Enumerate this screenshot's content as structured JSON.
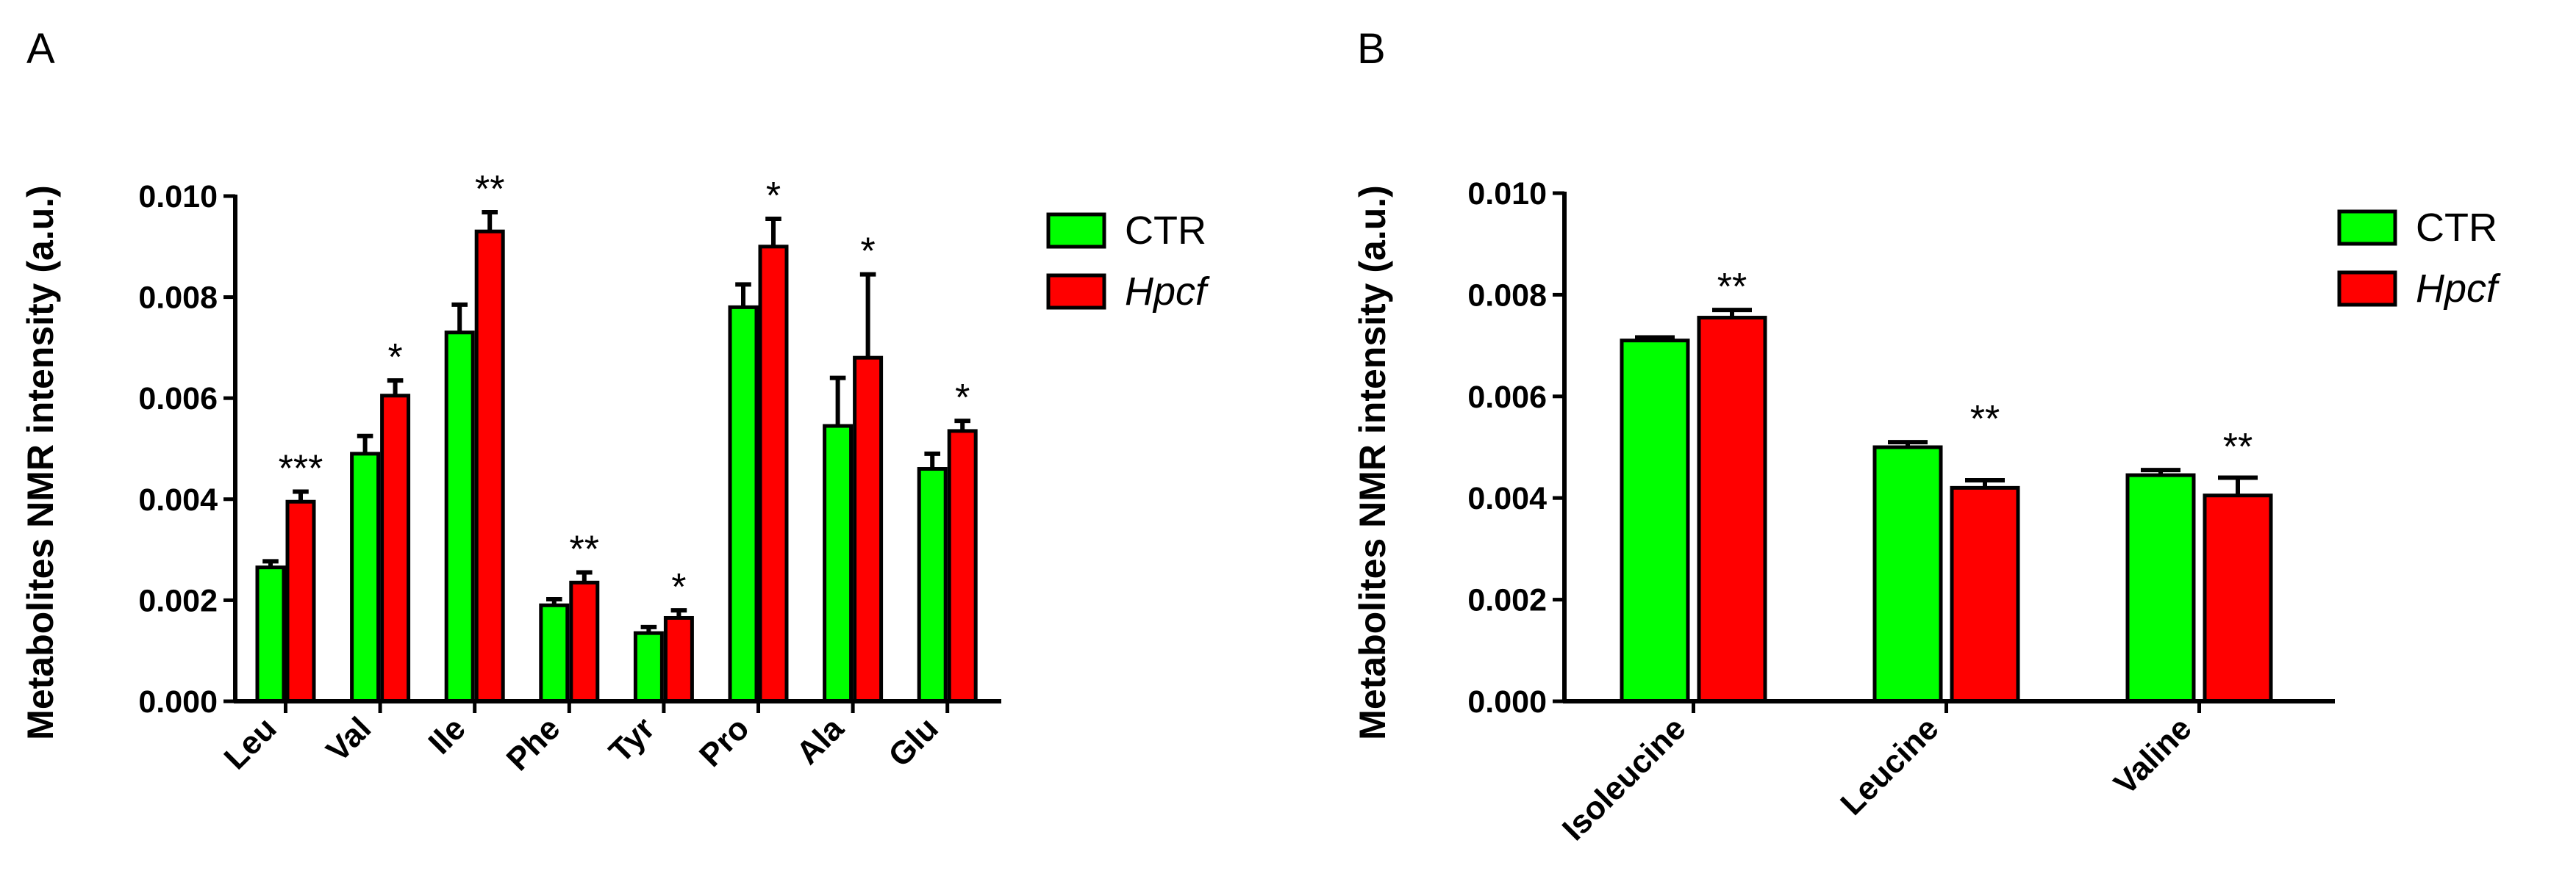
{
  "colors": {
    "ctr": "#00ff00",
    "hpcf": "#ff0000",
    "axis": "#000000"
  },
  "legend": [
    {
      "key": "ctr",
      "label": "CTR",
      "italic": false
    },
    {
      "key": "hpcf",
      "label": "Hpcf",
      "italic": true
    }
  ],
  "chart_data": [
    {
      "panel": "A",
      "type": "bar",
      "title": "",
      "xlabel": "",
      "ylabel": "Metabolites NMR intensity (a.u.)",
      "ylim": [
        0,
        0.01
      ],
      "yticks": [
        "0.000",
        "0.002",
        "0.004",
        "0.006",
        "0.008",
        "0.010"
      ],
      "categories": [
        "Leu",
        "Val",
        "Ile",
        "Phe",
        "Tyr",
        "Pro",
        "Ala",
        "Glu"
      ],
      "series": [
        {
          "name": "CTR",
          "values": [
            0.00265,
            0.0049,
            0.0073,
            0.0019,
            0.00135,
            0.0078,
            0.00545,
            0.0046
          ],
          "errors": [
            0.00012,
            0.00035,
            0.00055,
            0.00012,
            0.00012,
            0.00045,
            0.00095,
            0.0003
          ]
        },
        {
          "name": "Hpcf",
          "values": [
            0.00395,
            0.00605,
            0.0093,
            0.00235,
            0.00165,
            0.009,
            0.0068,
            0.00535
          ],
          "errors": [
            0.0002,
            0.0003,
            0.00038,
            0.0002,
            0.00015,
            0.00055,
            0.00165,
            0.0002
          ]
        }
      ],
      "significance": [
        "***",
        "*",
        "**",
        "**",
        "*",
        "*",
        "*",
        "*"
      ]
    },
    {
      "panel": "B",
      "type": "bar",
      "title": "",
      "xlabel": "",
      "ylabel": "Metabolites NMR intensity (a.u.)",
      "ylim": [
        0,
        0.01
      ],
      "yticks": [
        "0.000",
        "0.002",
        "0.004",
        "0.006",
        "0.008",
        "0.010"
      ],
      "categories": [
        "Isoleucine",
        "Leucine",
        "Valine"
      ],
      "series": [
        {
          "name": "CTR",
          "values": [
            0.0071,
            0.005,
            0.00445
          ],
          "errors": [
            6e-05,
            0.0001,
            0.0001
          ]
        },
        {
          "name": "Hpcf",
          "values": [
            0.00755,
            0.0042,
            0.00405
          ],
          "errors": [
            0.00015,
            0.00015,
            0.00035
          ]
        }
      ],
      "significance": [
        "**",
        "**",
        "**"
      ]
    }
  ]
}
